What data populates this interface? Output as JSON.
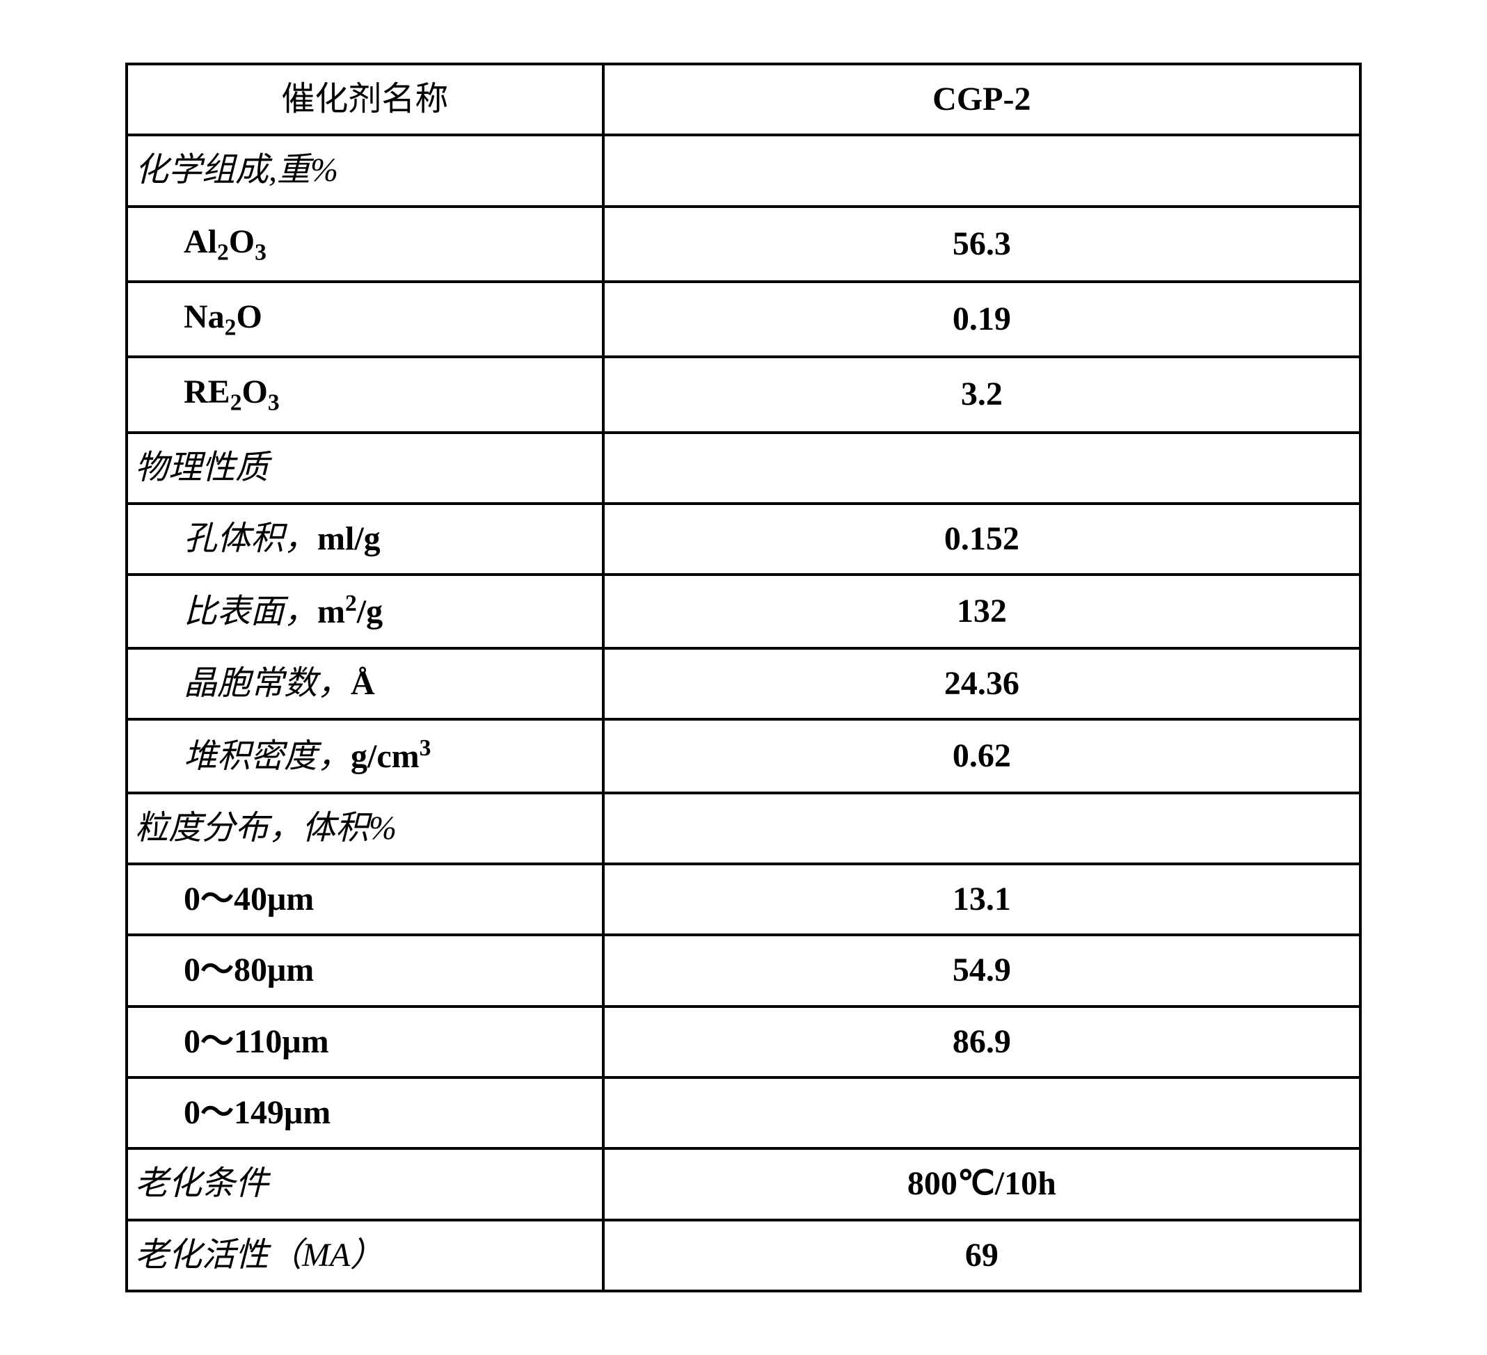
{
  "table": {
    "border_color": "#000000",
    "background_color": "#ffffff",
    "text_color": "#000000",
    "font_size_pt": 36,
    "columns": [
      "催化剂名称",
      "CGP-2"
    ],
    "rows": [
      {
        "label_html": "化学组成,重%",
        "value": "",
        "class": "section"
      },
      {
        "label_html": "Al<sub>2</sub>O<sub>3</sub>",
        "value": "56.3",
        "class": "indent"
      },
      {
        "label_html": "Na<sub>2</sub>O",
        "value": "0.19",
        "class": "indent"
      },
      {
        "label_html": "RE<sub>2</sub>O<sub>3</sub>",
        "value": "3.2",
        "class": "indent"
      },
      {
        "label_html": "物理性质",
        "value": "",
        "class": "section"
      },
      {
        "label_html": "<span class='cn-italic'>孔体积，</span><span class='unit'>ml/g</span>",
        "value": "0.152",
        "class": "indent-cn"
      },
      {
        "label_html": "<span class='cn-italic'>比表面，</span><span class='unit'>m<sup>2</sup>/g</span>",
        "value": "132",
        "class": "indent-cn"
      },
      {
        "label_html": "<span class='cn-italic'>晶胞常数，</span><span class='unit'>Å</span>",
        "value": "24.36",
        "class": "indent-cn"
      },
      {
        "label_html": "<span class='cn-italic'>堆积密度，</span><span class='unit'>g/cm<sup>3</sup></span>",
        "value": "0.62",
        "class": "indent-cn"
      },
      {
        "label_html": "粒度分布，体积%",
        "value": "",
        "class": "section"
      },
      {
        "label_html": "0～40μm",
        "value": "13.1",
        "class": "indent"
      },
      {
        "label_html": "0～80μm",
        "value": "54.9",
        "class": "indent"
      },
      {
        "label_html": "0～110μm",
        "value": "86.9",
        "class": "indent"
      },
      {
        "label_html": "0～149μm",
        "value": "",
        "class": "indent"
      },
      {
        "label_html": "老化条件",
        "value": "800℃/10h",
        "class": "section"
      },
      {
        "label_html": "老化活性（MA）",
        "value": "69",
        "class": "section"
      }
    ]
  }
}
